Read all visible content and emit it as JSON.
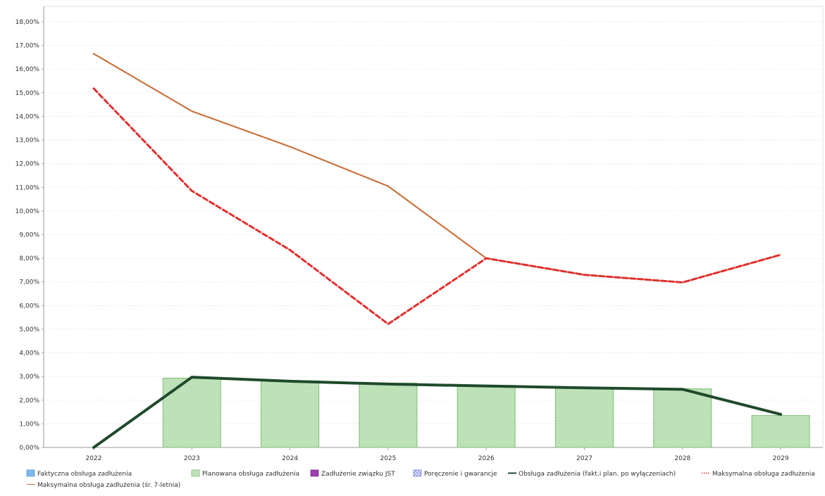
{
  "chart_data": {
    "type": "bar",
    "title": "",
    "xlabel": "",
    "ylabel": "",
    "categories": [
      "2022",
      "2023",
      "2024",
      "2025",
      "2026",
      "2027",
      "2028",
      "2029"
    ],
    "ylim": [
      0,
      18
    ],
    "y_ticks": [
      "0,00%",
      "1,00%",
      "2,00%",
      "3,00%",
      "4,00%",
      "5,00%",
      "6,00%",
      "7,00%",
      "8,00%",
      "9,00%",
      "10,00%",
      "11,00%",
      "12,00%",
      "13,00%",
      "14,00%",
      "15,00%",
      "16,00%",
      "17,00%",
      "18,00%"
    ],
    "grid": true,
    "legend_position": "bottom",
    "series": [
      {
        "name": "Faktyczna obsługa zadłużenia",
        "kind": "bar",
        "color": "#7fb8ea",
        "values": [
          0,
          0,
          0,
          0,
          0,
          0,
          0,
          0
        ]
      },
      {
        "name": "Planowana obsługa zadłużenia",
        "kind": "bar",
        "color": "#c9e8c4",
        "values": [
          0,
          2.93,
          2.82,
          2.72,
          2.62,
          2.52,
          2.48,
          1.35
        ]
      },
      {
        "name": "Zadłużenie związku JST",
        "kind": "bar",
        "color": "#9b3fae",
        "values": [
          0,
          0,
          0,
          0,
          0,
          0,
          0,
          0
        ]
      },
      {
        "name": "Poręczenie i gwarancje",
        "kind": "bar",
        "color": "#8a96e0",
        "values": [
          0,
          0,
          0,
          0,
          0,
          0,
          0,
          0
        ]
      },
      {
        "name": "Obsługa zadłużenia (fakt.i plan. po wyłączeniach)",
        "kind": "line",
        "color": "#1f4a2c",
        "values": [
          0,
          2.97,
          2.8,
          2.68,
          2.6,
          2.52,
          2.46,
          1.4
        ]
      },
      {
        "name": "Maksymalna obsługa zadłużenia",
        "kind": "line",
        "color": "#e03030",
        "values": [
          15.18,
          10.85,
          8.35,
          5.22,
          8.0,
          7.3,
          6.98,
          8.15
        ]
      },
      {
        "name": "Maksymalna obsługa zadłużenia (śr. 7-letnia)",
        "kind": "line",
        "color": "#c9703a",
        "values": [
          16.65,
          14.22,
          12.72,
          11.05,
          8.0,
          7.3,
          6.98,
          8.15
        ]
      }
    ]
  }
}
